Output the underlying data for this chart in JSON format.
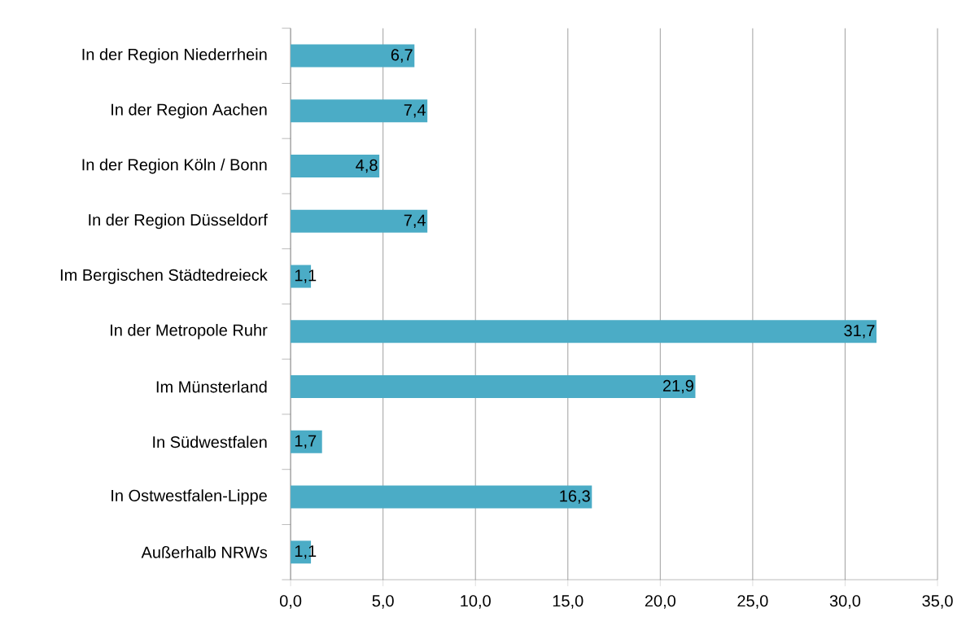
{
  "chart_data": {
    "type": "bar",
    "orientation": "horizontal",
    "categories": [
      "In der Region Niederrhein",
      "In der Region Aachen",
      "In der Region Köln / Bonn",
      "In der Region Düsseldorf",
      "Im Bergischen Städtedreieck",
      "In der Metropole Ruhr",
      "Im Münsterland",
      "In Südwestfalen",
      "In Ostwestfalen-Lippe",
      "Außerhalb NRWs"
    ],
    "values": [
      6.7,
      7.4,
      4.8,
      7.4,
      1.1,
      31.7,
      21.9,
      1.7,
      16.3,
      1.1
    ],
    "value_labels": [
      "6,7",
      "7,4",
      "4,8",
      "7,4",
      "1,1",
      "31,7",
      "21,9",
      "1,7",
      "16,3",
      "1,1"
    ],
    "color": "#4bacc6",
    "xlim": [
      0,
      35
    ],
    "xticks": [
      {
        "value": 0,
        "label": "0,0"
      },
      {
        "value": 5,
        "label": "5,0"
      },
      {
        "value": 10,
        "label": "10,0"
      },
      {
        "value": 15,
        "label": "15,0"
      },
      {
        "value": 20,
        "label": "20,0"
      },
      {
        "value": 25,
        "label": "25,0"
      },
      {
        "value": 30,
        "label": "30,0"
      },
      {
        "value": 35,
        "label": "35,0"
      }
    ],
    "grid": "x"
  }
}
